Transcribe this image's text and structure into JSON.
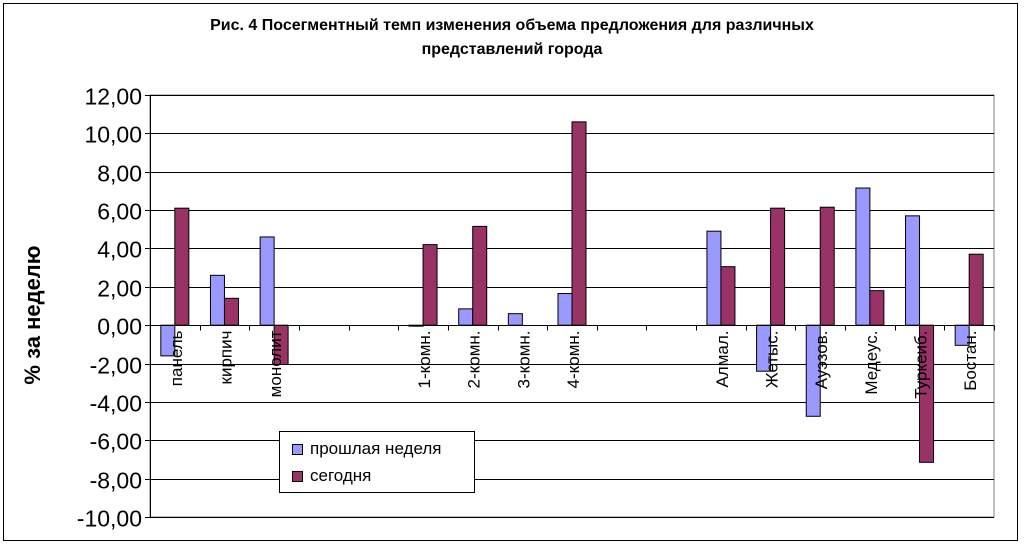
{
  "chart_data": {
    "type": "bar",
    "title_lines": [
      "Рис. 4 Посегментный темп изменения объема предложения для различных",
      "представлений города"
    ],
    "xlabel": "",
    "ylabel": "% за неделю",
    "ylim": [
      -10,
      12
    ],
    "ytick_step": 2,
    "ytick_labels": [
      "12,00",
      "10,00",
      "8,00",
      "6,00",
      "4,00",
      "2,00",
      "0,00",
      "-2,00",
      "-4,00",
      "-6,00",
      "-8,00",
      "-10,00"
    ],
    "grid": true,
    "legend_position": "bottom-left",
    "categories": [
      "панель",
      "кирпич",
      "монолит",
      "",
      "",
      "1-комн.",
      "2-комн.",
      "3-комн.",
      "4-комн.",
      "",
      "",
      "Алмал.",
      "Жетыс.",
      "Ауэзов.",
      "Медеус.",
      "Туркеиб.",
      "Бостан."
    ],
    "series": [
      {
        "name": "прошлая неделя",
        "color": "#9999ff",
        "values": [
          -1.6,
          2.6,
          4.6,
          null,
          null,
          -0.05,
          0.85,
          0.6,
          1.65,
          null,
          null,
          4.9,
          -2.4,
          -4.75,
          7.15,
          5.7,
          -1.05
        ]
      },
      {
        "name": "сегодня",
        "color": "#993366",
        "values": [
          6.1,
          1.4,
          -2.05,
          null,
          null,
          4.2,
          5.15,
          null,
          10.6,
          null,
          null,
          3.05,
          6.1,
          6.15,
          1.8,
          -7.15,
          3.7
        ]
      }
    ]
  }
}
